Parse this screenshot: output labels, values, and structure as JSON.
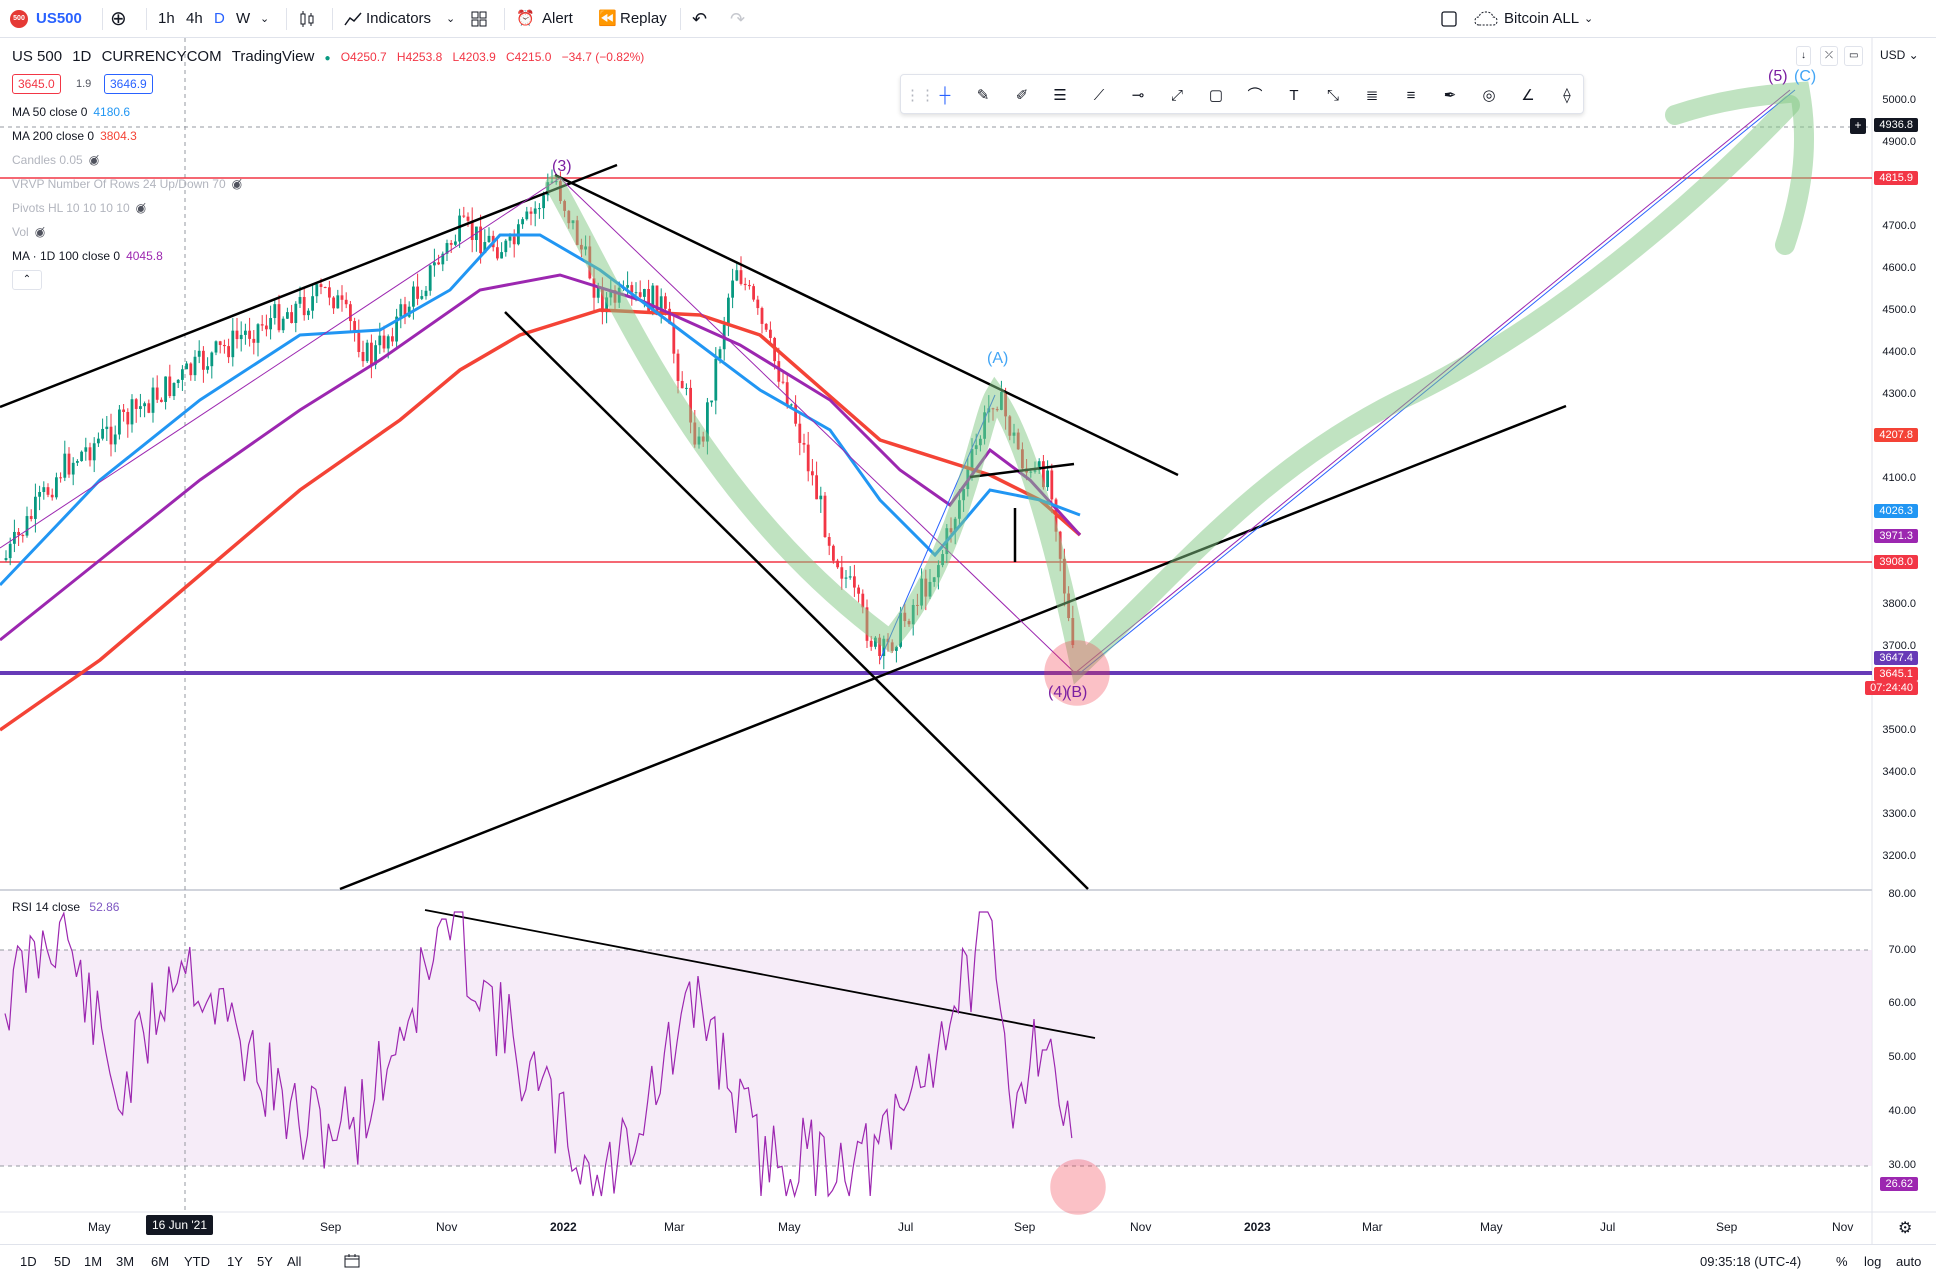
{
  "toolbar": {
    "symbol": "US500",
    "intervals": [
      "1h",
      "4h",
      "D",
      "W"
    ],
    "indicators_label": "Indicators",
    "alert_label": "Alert",
    "replay_label": "Replay",
    "layout_name": "Bitcoin ALL"
  },
  "legend": {
    "title": "US 500",
    "interval": "1D",
    "exchange": "CURRENCYCOM",
    "source": "TradingView",
    "open": "O4250.7",
    "high": "H4253.8",
    "low": "L4203.9",
    "close": "C4215.0",
    "change": "−34.7 (−0.82%)",
    "bid": "3645.0",
    "spread": "1.9",
    "ask": "3646.9",
    "indicators": [
      {
        "label": "MA 50 close 0",
        "value": "4180.6",
        "color": "#2196f3"
      },
      {
        "label": "MA 200 close 0",
        "value": "3804.3",
        "color": "#f44336"
      },
      {
        "label": "Candles 0.05",
        "value": "",
        "color": "#b2b5be"
      },
      {
        "label": "VRVP Number Of Rows 24 Up/Down 70",
        "value": "",
        "color": "#b2b5be"
      },
      {
        "label": "Pivots HL 10 10 10 10",
        "value": "",
        "color": "#b2b5be"
      },
      {
        "label": "Vol",
        "value": "",
        "color": "#b2b5be"
      },
      {
        "label": "MA · 1D 100 close 0",
        "value": "4045.8",
        "color": "#9c27b0"
      }
    ],
    "rsi_label": "RSI 14 close",
    "rsi_value": "52.86"
  },
  "price_axis": {
    "currency": "USD",
    "ticks": [
      "5000.0",
      "4900.0",
      "4700.0",
      "4600.0",
      "4500.0",
      "4400.0",
      "4300.0",
      "4100.0",
      "3800.0",
      "3700.0",
      "3500.0",
      "3400.0",
      "3300.0",
      "3200.0"
    ],
    "labels": {
      "crosshair": "4936.8",
      "level_high": "4815.9",
      "ma200": "4207.8",
      "ma50": "4026.3",
      "ma100": "3971.3",
      "level_mid": "3908.0",
      "level_low": "3647.4",
      "last_price": "3645.1",
      "countdown": "07:24:40"
    }
  },
  "rsi_axis": {
    "ticks": [
      "80.00",
      "70.00",
      "60.00",
      "50.00",
      "40.00",
      "30.00"
    ],
    "current": "26.62"
  },
  "time_axis": {
    "labels": [
      "May",
      "Sep",
      "Nov",
      "2022",
      "Mar",
      "May",
      "Jul",
      "Sep",
      "Nov",
      "2023",
      "Mar",
      "May",
      "Jul",
      "Sep",
      "Nov"
    ],
    "crosshair": "16 Jun '21"
  },
  "annotations": {
    "wave3": "(3)",
    "waveA": "(A)",
    "wave4": "(4)",
    "waveB": "(B)",
    "wave5": "(5)",
    "waveC": "(C)"
  },
  "bottom": {
    "ranges": [
      "1D",
      "5D",
      "1M",
      "3M",
      "6M",
      "YTD",
      "1Y",
      "5Y",
      "All"
    ],
    "clock": "09:35:18 (UTC-4)",
    "percent": "%",
    "log": "log",
    "auto": "auto"
  },
  "colors": {
    "ma50": "#2196f3",
    "ma200": "#f44336",
    "ma100": "#9c27b0",
    "down": "#f23645",
    "up": "#089981",
    "accent": "#2962ff"
  }
}
